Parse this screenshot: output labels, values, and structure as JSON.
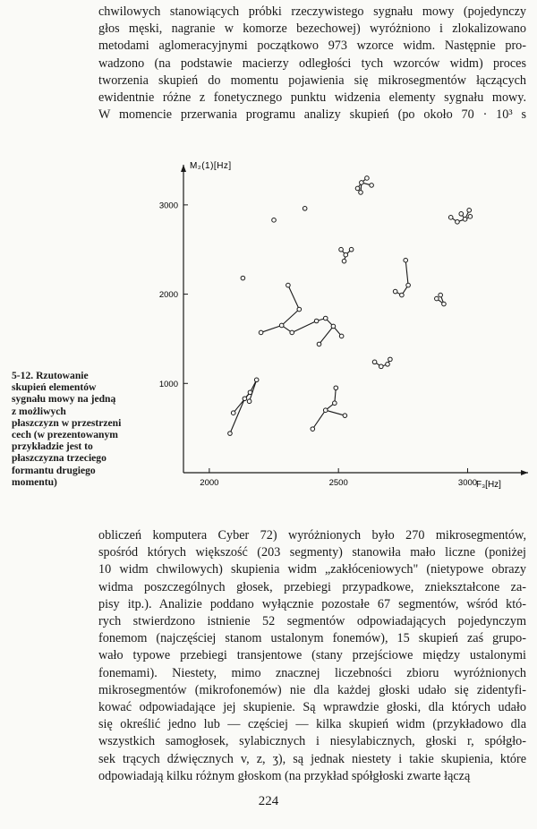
{
  "top_text": [
    "chwilowych stanowiących próbki rzeczywistego sygnału mowy (pojedynczy",
    "głos męski, nagranie w komorze bezechowej) wyróżniono i zlokalizowano",
    "metodami aglomeracyjnymi początkowo 973 wzorce widm. Następnie pro-",
    "wadzono (na podstawie macierzy odległości tych wzorców widm) proces",
    "tworzenia skupień do momentu pojawienia się mikrosegmentów łączących",
    "ewidentnie różne z fonetycznego punktu widzenia elementy sygnału mowy.",
    "W momencie przerwania programu analizy skupień (po około 70 · 10³ s"
  ],
  "caption": {
    "label": "5-12.",
    "lines": [
      "Rzutowanie",
      "skupień elementów",
      "sygnału mowy na jedną",
      "z możliwych",
      "płaszczyzn w przestrzeni",
      "cech (w prezentowanym",
      "przykładzie jest to",
      "płaszczyzna trzeciego",
      "formantu drugiego",
      "momentu)"
    ]
  },
  "bottom_text": [
    "obliczeń komputera Cyber 72) wyróżnionych było 270 mikrosegmentów,",
    "spośród których większość (203 segmenty) stanowiła mało liczne (poniżej",
    "10 widm chwilowych) skupienia widm „zakłóceniowych\" (nietypowe obrazy",
    "widma poszczególnych głosek, przebiegi przypadkowe, zniekształcone za-",
    "pisy itp.). Analizie poddano wyłącznie pozostałe 67 segmentów, wśród któ-",
    "rych stwierdzono istnienie 52 segmentów odpowiadających pojedynczym",
    "fonemom (najczęściej stanom ustalonym fonemów), 15 skupień zaś grupo-",
    "wało typowe przebiegi transjentowe (stany przejściowe między ustalonymi",
    "fonemami). Niestety, mimo znacznej liczebności zbioru wyróżnionych",
    "mikrosegmentów (mikrofonemów) nie dla każdej głoski udało się zidentyfi-",
    "kować odpowiadające jej skupienie. Są wprawdzie głoski, dla których udało",
    "się określić jedno lub — częściej — kilka skupień widm (przykładowo dla",
    "wszystkich samogłosek, sylabicznych i niesylabicznych, głoski r, spółgło-",
    "sek trących dźwięcznych v, z, ʒ), są jednak niestety i takie skupienia, które",
    "odpowiadają kilku różnym głoskom (na przykład spółgłoski zwarte łączą"
  ],
  "page_number": "224",
  "chart_data": {
    "type": "scatter",
    "title": "",
    "xlabel": "F₃[Hz]",
    "ylabel": "M₂(1)[Hz]",
    "xlim": [
      1900,
      3130
    ],
    "ylim": [
      0,
      3450
    ],
    "x_ticks": [
      "2000",
      "2500",
      "3000"
    ],
    "y_ticks": [
      "1000",
      "2000",
      "3000"
    ],
    "x_tick_values": [
      2000,
      2500,
      3000
    ],
    "y_tick_values": [
      1000,
      2000,
      3000
    ],
    "grid": false,
    "clusters": [
      {
        "points": [
          [
            2574,
            3185
          ],
          [
            2589,
            3250
          ],
          [
            2610,
            3300
          ],
          [
            2628,
            3220
          ],
          [
            2586,
            3140
          ]
        ],
        "edges": [
          [
            0,
            1
          ],
          [
            1,
            2
          ],
          [
            1,
            3
          ],
          [
            1,
            4
          ]
        ]
      },
      {
        "points": [
          [
            2935,
            2860
          ],
          [
            2960,
            2810
          ],
          [
            2990,
            2840
          ],
          [
            2975,
            2900
          ],
          [
            3006,
            2940
          ],
          [
            3010,
            2870
          ]
        ],
        "edges": [
          [
            0,
            1
          ],
          [
            1,
            2
          ],
          [
            2,
            3
          ],
          [
            2,
            4
          ],
          [
            2,
            5
          ]
        ]
      },
      {
        "points": [
          [
            2370,
            2960
          ]
        ],
        "edges": []
      },
      {
        "points": [
          [
            2250,
            2830
          ]
        ],
        "edges": []
      },
      {
        "points": [
          [
            2130,
            2180
          ]
        ],
        "edges": []
      },
      {
        "points": [
          [
            2510,
            2500
          ],
          [
            2550,
            2500
          ],
          [
            2528,
            2440
          ],
          [
            2522,
            2370
          ]
        ],
        "edges": [
          [
            0,
            2
          ],
          [
            1,
            2
          ],
          [
            2,
            3
          ]
        ]
      },
      {
        "points": [
          [
            2760,
            2380
          ],
          [
            2770,
            2100
          ],
          [
            2745,
            1990
          ],
          [
            2720,
            2030
          ]
        ],
        "edges": [
          [
            0,
            1
          ],
          [
            1,
            2
          ],
          [
            2,
            3
          ]
        ]
      },
      {
        "points": [
          [
            2880,
            1950
          ],
          [
            2908,
            1890
          ],
          [
            2895,
            1990
          ]
        ],
        "edges": [
          [
            0,
            1
          ],
          [
            1,
            2
          ]
        ]
      },
      {
        "points": [
          [
            2305,
            2100
          ],
          [
            2348,
            1830
          ],
          [
            2280,
            1650
          ],
          [
            2200,
            1570
          ],
          [
            2320,
            1570
          ],
          [
            2415,
            1700
          ],
          [
            2450,
            1730
          ],
          [
            2480,
            1640
          ],
          [
            2425,
            1440
          ],
          [
            2512,
            1530
          ]
        ],
        "edges": [
          [
            0,
            1
          ],
          [
            1,
            2
          ],
          [
            2,
            3
          ],
          [
            2,
            4
          ],
          [
            4,
            5
          ],
          [
            5,
            6
          ],
          [
            6,
            7
          ],
          [
            7,
            8
          ],
          [
            7,
            9
          ]
        ]
      },
      {
        "points": [
          [
            2640,
            1240
          ],
          [
            2665,
            1190
          ],
          [
            2690,
            1215
          ],
          [
            2700,
            1270
          ]
        ],
        "edges": [
          [
            0,
            1
          ],
          [
            1,
            2
          ],
          [
            2,
            3
          ]
        ]
      },
      {
        "points": [
          [
            2155,
            800
          ],
          [
            2183,
            1040
          ],
          [
            2158,
            900
          ],
          [
            2093,
            670
          ],
          [
            2137,
            830
          ],
          [
            2080,
            440
          ]
        ],
        "edges": [
          [
            0,
            1
          ],
          [
            1,
            2
          ],
          [
            2,
            3
          ],
          [
            2,
            4
          ],
          [
            4,
            5
          ]
        ]
      },
      {
        "points": [
          [
            2490,
            950
          ],
          [
            2485,
            780
          ],
          [
            2450,
            700
          ],
          [
            2525,
            640
          ],
          [
            2400,
            490
          ]
        ],
        "edges": [
          [
            0,
            1
          ],
          [
            1,
            2
          ],
          [
            2,
            3
          ],
          [
            2,
            4
          ]
        ]
      }
    ]
  }
}
